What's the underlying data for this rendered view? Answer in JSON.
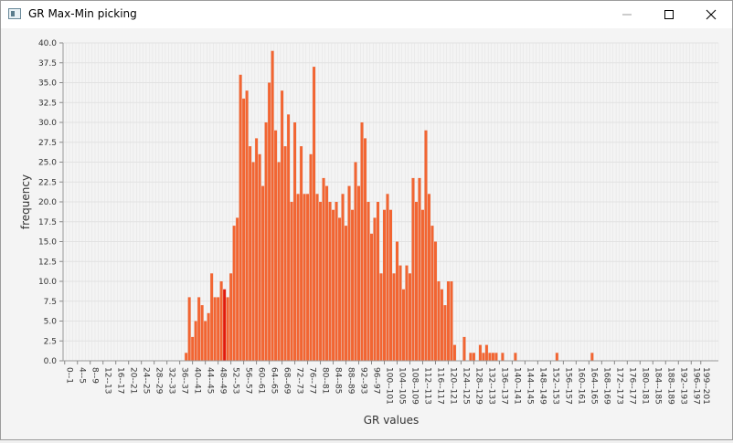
{
  "window": {
    "title": "GR Max-Min picking",
    "controls": [
      "minimize-icon",
      "maximize-icon",
      "close-icon"
    ]
  },
  "colors": {
    "bar": "#f26532",
    "bar_highlight": "#e31a0b",
    "grid": "#e2e2e2",
    "background": "#f4f4f4"
  },
  "chart_data": {
    "type": "bar",
    "xlabel": "GR values",
    "ylabel": "frequency",
    "ylim": [
      0,
      40
    ],
    "yticks": [
      "0.0",
      "2.5",
      "5.0",
      "7.5",
      "10.0",
      "12.5",
      "15.0",
      "17.5",
      "20.0",
      "22.5",
      "25.0",
      "27.5",
      "30.0",
      "32.5",
      "35.0",
      "37.5",
      "40.0"
    ],
    "x_tick_labels": [
      "0--1",
      "4--5",
      "8--9",
      "12--13",
      "16--17",
      "20--21",
      "24--25",
      "28--29",
      "32--33",
      "36--37",
      "40--41",
      "44--45",
      "48--49",
      "52--53",
      "56--57",
      "60--61",
      "64--65",
      "68--69",
      "72--73",
      "76--77",
      "80--81",
      "84--85",
      "88--89",
      "92--93",
      "96--97",
      "100--101",
      "104--105",
      "108--109",
      "112--113",
      "116--117",
      "120--121",
      "124--125",
      "128--129",
      "132--133",
      "136--137",
      "140--141",
      "144--145",
      "148--149",
      "152--153",
      "156--157",
      "160--161",
      "164--165",
      "168--169",
      "172--173",
      "176--177",
      "180--181",
      "184--185",
      "188--189",
      "192--193",
      "196--197",
      "199--201"
    ],
    "bin_start": 0,
    "bin_width": 1,
    "highlight_bin": 50,
    "values": [
      0,
      0,
      0,
      0,
      0,
      0,
      0,
      0,
      0,
      0,
      0,
      0,
      0,
      0,
      0,
      0,
      0,
      0,
      0,
      0,
      0,
      0,
      0,
      0,
      0,
      0,
      0,
      0,
      0,
      0,
      0,
      0,
      0,
      0,
      0,
      0,
      0,
      0,
      1,
      8,
      3,
      5,
      8,
      7,
      5,
      6,
      11,
      8,
      8,
      10,
      9,
      8,
      11,
      17,
      18,
      36,
      33,
      34,
      27,
      25,
      28,
      26,
      22,
      30,
      35,
      39,
      29,
      25,
      34,
      27,
      31,
      20,
      30,
      21,
      27,
      21,
      21,
      26,
      37,
      21,
      20,
      23,
      22,
      20,
      19,
      20,
      18,
      21,
      17,
      22,
      19,
      25,
      22,
      30,
      28,
      20,
      16,
      18,
      20,
      11,
      19,
      21,
      19,
      11,
      15,
      12,
      9,
      12,
      11,
      23,
      20,
      23,
      19,
      29,
      21,
      17,
      15,
      10,
      9,
      7,
      10,
      10,
      2,
      0,
      0,
      3,
      0,
      1,
      1,
      0,
      2,
      1,
      2,
      1,
      1,
      1,
      0,
      1,
      0,
      0,
      0,
      1,
      0,
      0,
      0,
      0,
      0,
      0,
      0,
      0,
      0,
      0,
      0,
      0,
      1,
      0,
      0,
      0,
      0,
      0,
      0,
      0,
      0,
      0,
      0,
      1,
      0,
      0,
      0,
      0,
      0,
      0,
      0,
      0,
      0,
      0,
      0,
      0,
      0,
      0,
      0,
      0,
      0,
      0,
      0,
      0,
      0,
      0,
      0,
      0,
      0,
      0,
      0,
      0,
      0,
      0,
      0,
      0,
      0,
      0,
      0,
      0,
      0,
      0,
      0
    ]
  }
}
